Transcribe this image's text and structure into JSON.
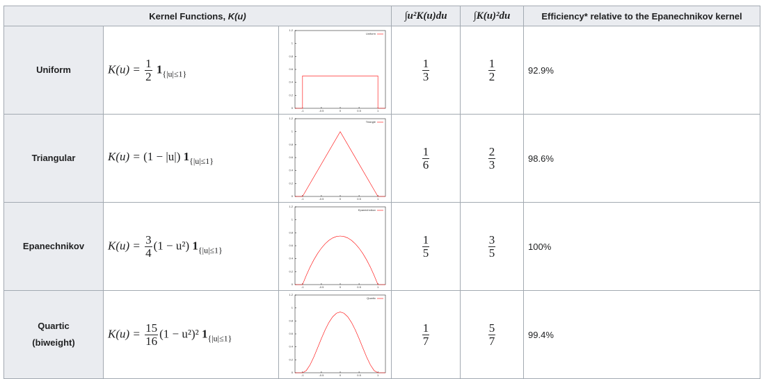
{
  "header": {
    "kernel_title": "Kernel Functions, ",
    "kernel_symbol": "K(u)",
    "moment": "∫u²K(u)du",
    "roughness": "∫K(u)²du",
    "efficiency": "Efficiency* relative to the Epanechnikov kernel"
  },
  "plot_axes": {
    "xlim": [
      -1.2,
      1.2
    ],
    "ylim": [
      0,
      1.2
    ],
    "xticks": [
      -1,
      -0.5,
      0,
      0.5,
      1
    ],
    "yticks": [
      0,
      0.2,
      0.4,
      0.6,
      0.8,
      1,
      1.2
    ],
    "color": "#ff0000"
  },
  "rows": [
    {
      "name": "Uniform",
      "formula": {
        "lhs": "K(u) =",
        "coef": {
          "num": "1",
          "den": "2"
        },
        "indicator": "1",
        "support": "{|u|≤1}"
      },
      "plot": {
        "type": "line",
        "legend": "Uniform",
        "x": [
          -1.2,
          -1,
          -1,
          1,
          1,
          1.2
        ],
        "values": [
          0,
          0,
          0.5,
          0.5,
          0,
          0
        ]
      },
      "moment": {
        "num": "1",
        "den": "3"
      },
      "roughness": {
        "num": "1",
        "den": "2"
      },
      "efficiency": "92.9%"
    },
    {
      "name": "Triangular",
      "formula": {
        "lhs": "K(u) =",
        "body": "(1 − |u|)",
        "indicator": "1",
        "support": "{|u|≤1}"
      },
      "plot": {
        "type": "line",
        "legend": "Triangle",
        "x": [
          -1.2,
          -1,
          0,
          1,
          1.2
        ],
        "values": [
          0,
          0,
          1,
          0,
          0
        ]
      },
      "moment": {
        "num": "1",
        "den": "6"
      },
      "roughness": {
        "num": "2",
        "den": "3"
      },
      "efficiency": "98.6%"
    },
    {
      "name": "Epanechnikov",
      "formula": {
        "lhs": "K(u) =",
        "coef": {
          "num": "3",
          "den": "4"
        },
        "body": "(1 − u²)",
        "indicator": "1",
        "support": "{|u|≤1}"
      },
      "plot": {
        "type": "line",
        "legend": "Epanechnikov",
        "x": [
          -1.2,
          -1,
          -0.9,
          -0.8,
          -0.7,
          -0.6,
          -0.5,
          -0.4,
          -0.3,
          -0.2,
          -0.1,
          0,
          0.1,
          0.2,
          0.3,
          0.4,
          0.5,
          0.6,
          0.7,
          0.8,
          0.9,
          1,
          1.2
        ],
        "values": [
          0,
          0,
          0.1425,
          0.27,
          0.3825,
          0.48,
          0.5625,
          0.63,
          0.6825,
          0.72,
          0.7425,
          0.75,
          0.7425,
          0.72,
          0.6825,
          0.63,
          0.5625,
          0.48,
          0.3825,
          0.27,
          0.1425,
          0,
          0
        ]
      },
      "moment": {
        "num": "1",
        "den": "5"
      },
      "roughness": {
        "num": "3",
        "den": "5"
      },
      "efficiency": "100%"
    },
    {
      "name": "Quartic",
      "qualifier": "(biweight)",
      "formula": {
        "lhs": "K(u) =",
        "coef": {
          "num": "15",
          "den": "16"
        },
        "body": "(1 − u²)²",
        "indicator": "1",
        "support": "{|u|≤1}"
      },
      "plot": {
        "type": "line",
        "legend": "Quartic",
        "x": [
          -1.2,
          -1,
          -0.9,
          -0.8,
          -0.7,
          -0.6,
          -0.5,
          -0.4,
          -0.3,
          -0.2,
          -0.1,
          0,
          0.1,
          0.2,
          0.3,
          0.4,
          0.5,
          0.6,
          0.7,
          0.8,
          0.9,
          1,
          1.2
        ],
        "values": [
          0,
          0,
          0.03384,
          0.1215,
          0.24384,
          0.384,
          0.52734,
          0.6615,
          0.77634,
          0.864,
          0.91884,
          0.9375,
          0.91884,
          0.864,
          0.77634,
          0.6615,
          0.52734,
          0.384,
          0.24384,
          0.1215,
          0.03384,
          0,
          0
        ]
      },
      "moment": {
        "num": "1",
        "den": "7"
      },
      "roughness": {
        "num": "5",
        "den": "7"
      },
      "efficiency": "99.4%"
    }
  ]
}
